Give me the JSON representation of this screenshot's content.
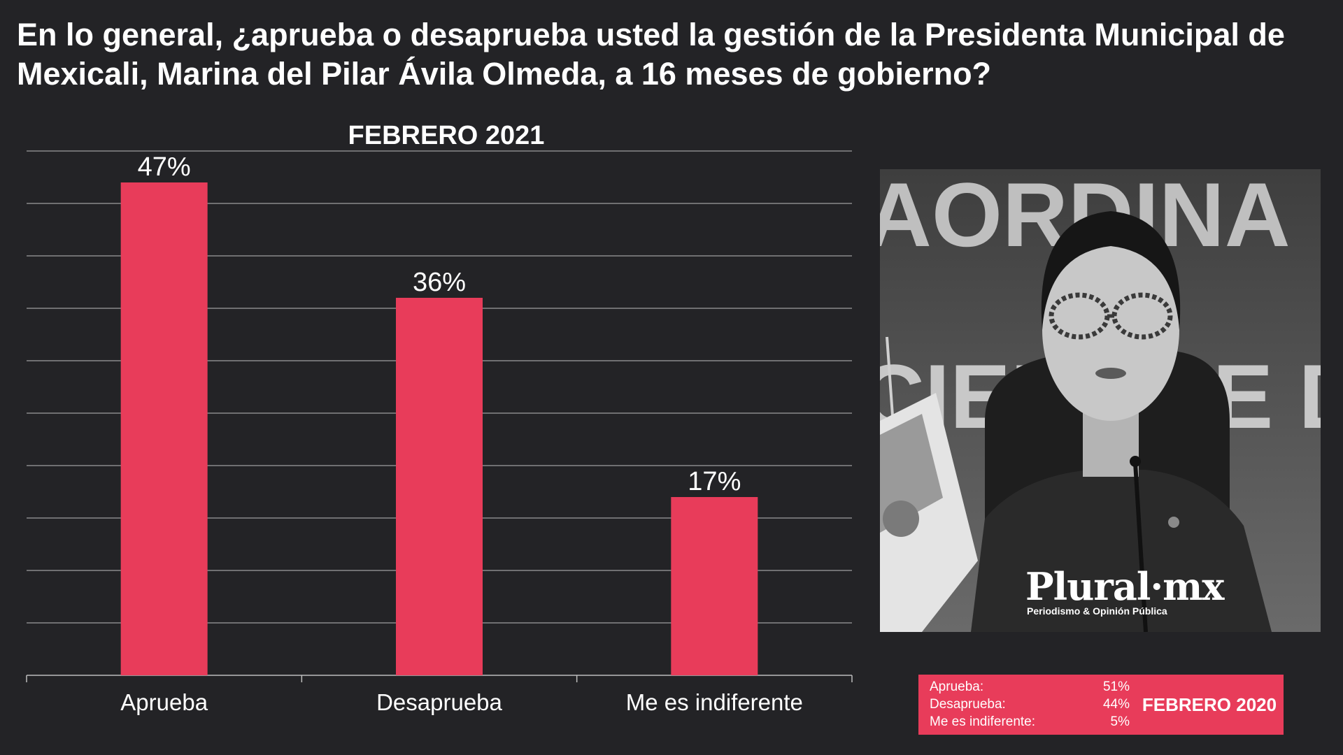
{
  "title": "En lo general, ¿aprueba o desaprueba usted la gestión de la Presidenta Municipal de Mexicali, Marina del Pilar Ávila Olmeda, a 16 meses de gobierno?",
  "chart_data": {
    "type": "bar",
    "title": "FEBRERO 2021",
    "categories": [
      "Aprueba",
      "Desaprueba",
      "Me es indiferente"
    ],
    "values": [
      47,
      36,
      17
    ],
    "value_labels": [
      "47%",
      "36%",
      "17%"
    ],
    "unit": "%",
    "ylim": [
      0,
      50
    ],
    "gridlines": true,
    "bar_color": "#e83c5a"
  },
  "photo": {
    "alt": "Marina del Pilar Ávila Olmeda",
    "background_text": "AORDINA",
    "background_text2": "CIEMPRE D",
    "logo_text": "Plural·mx",
    "logo_tagline": "Periodismo & Opinión Pública"
  },
  "previous": {
    "title": "FEBRERO 2020",
    "rows": [
      {
        "label": "Aprueba:",
        "value": "51%"
      },
      {
        "label": "Desaprueba:",
        "value": "44%"
      },
      {
        "label": "Me es indiferente:",
        "value": "5%"
      }
    ]
  },
  "colors": {
    "background": "#232326",
    "accent": "#e83c5a",
    "grid": "#bdbdbd",
    "text": "#ffffff"
  }
}
